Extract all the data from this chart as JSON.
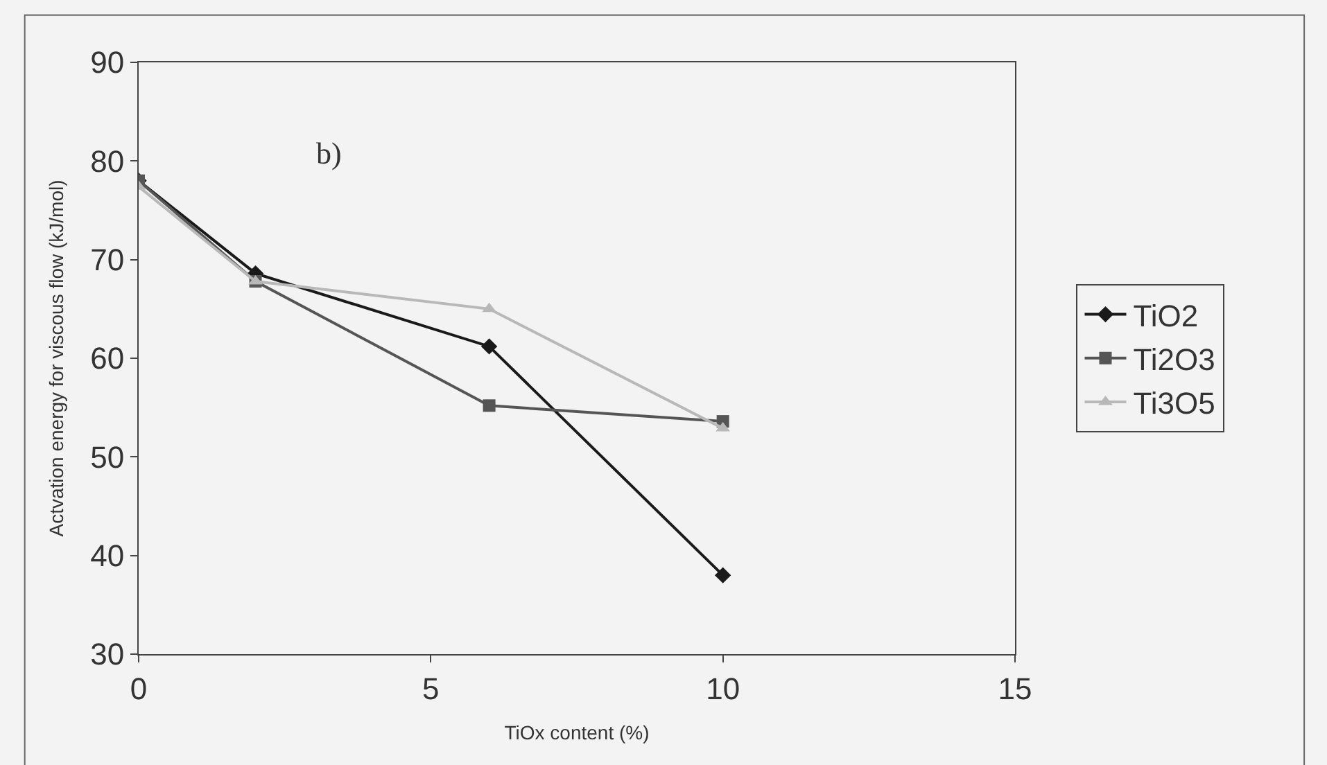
{
  "chart_data": {
    "type": "line",
    "xlabel": "TiOx content (%)",
    "ylabel": "Actvation energy for viscous flow (kJ/mol)",
    "annotations": [
      "b)"
    ],
    "x": [
      0,
      2,
      6,
      10
    ],
    "series": [
      {
        "name": "TiO2",
        "color": "#1a1a1a",
        "marker": "diamond",
        "values": [
          78,
          68.6,
          61.2,
          38
        ]
      },
      {
        "name": "Ti2O3",
        "color": "#555555",
        "marker": "square",
        "values": [
          78,
          67.8,
          55.2,
          53.6
        ]
      },
      {
        "name": "Ti3O5",
        "color": "#b8b8b8",
        "marker": "triangle",
        "values": [
          77.4,
          67.8,
          65,
          52.9
        ]
      }
    ],
    "xlim": [
      0,
      15
    ],
    "xticks": [
      0,
      5,
      10,
      15
    ],
    "ylim": [
      30,
      90
    ],
    "yticks": [
      30,
      40,
      50,
      60,
      70,
      80,
      90
    ],
    "grid": false,
    "legend": "right",
    "line_style": "solid"
  }
}
